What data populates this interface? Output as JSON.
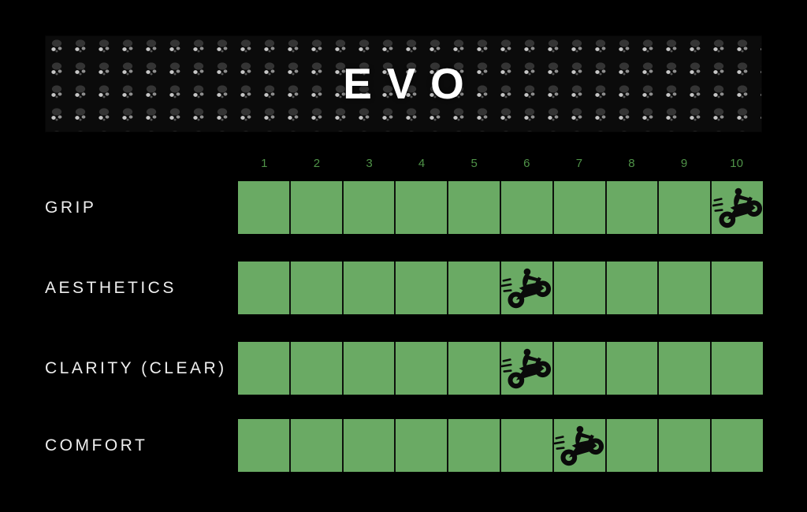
{
  "header": {
    "title": "EVO",
    "texture_icon": "grip-stud-pattern-icon"
  },
  "colors": {
    "background": "#000000",
    "cell_green": "#6aaa64",
    "cell_divider": "#0d120c",
    "tick_green": "#4f9348",
    "label_color": "#efefef",
    "title_color": "#ffffff",
    "marker_black": "#0a0a0a"
  },
  "chart_data": {
    "type": "bar",
    "title": "EVO",
    "categories": [
      "GRIP",
      "AESTHETICS",
      "CLARITY (CLEAR)",
      "COMFORT"
    ],
    "values": [
      10,
      6,
      6,
      7
    ],
    "x_ticks": [
      "1",
      "2",
      "3",
      "4",
      "5",
      "6",
      "7",
      "8",
      "9",
      "10"
    ],
    "xlim": [
      1,
      10
    ],
    "cells_per_row": 10,
    "marker_icon": "motocross-bike-icon",
    "legend_position": "none",
    "grid": "10 equal green cells per category; bike marker placed in the cell matching the score"
  }
}
